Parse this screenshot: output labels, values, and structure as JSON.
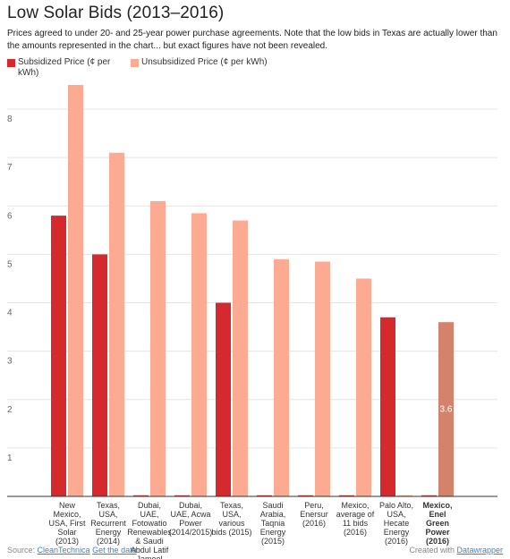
{
  "title": "Low Solar Bids (2013–2016)",
  "subtitle": "Prices agreed to under 20- and 25-year power purchase agreements. Note that the low bids in Texas are actually lower than the amounts represented in the chart... but exact figures have not been revealed.",
  "legend": [
    {
      "label": "Subsidized Price (¢ per kWh)",
      "color": "#d42a2d"
    },
    {
      "label": "Unsubsidized Price (¢ per kWh)",
      "color": "#fcaa92"
    }
  ],
  "chart_data": {
    "type": "bar",
    "title": "Low Solar Bids (2013–2016)",
    "ylim": [
      0,
      8.5
    ],
    "y_ticks": [
      1,
      2,
      3,
      4,
      5,
      6,
      7,
      8
    ],
    "grid": true,
    "legend_position": "top-left",
    "categories": [
      [
        "New",
        "Mexico,",
        "USA, First",
        "Solar",
        "(2013)"
      ],
      [
        "Texas,",
        "USA,",
        "Recurrent",
        "Energy",
        "(2014)"
      ],
      [
        "Dubai,",
        "UAE,",
        "Fotowatio",
        "Renewables",
        "& Saudi",
        "Abdul Latif",
        "Jameel"
      ],
      [
        "Dubai,",
        "UAE, Acwa",
        "Power",
        "(2014/2015)"
      ],
      [
        "Texas,",
        "USA,",
        "various",
        "bids (2015)"
      ],
      [
        "Saudi",
        "Arabia,",
        "Taqnia",
        "Energy",
        "(2015)"
      ],
      [
        "Peru,",
        "Enersur",
        "(2016)"
      ],
      [
        "Mexico,",
        "average of",
        "11 bids",
        "(2016)"
      ],
      [
        "Palo Alto,",
        "USA,",
        "Hecate",
        "Energy",
        "(2016)"
      ],
      [
        "Mexico,",
        "Enel",
        "Green",
        "Power",
        "(2016)"
      ]
    ],
    "series": [
      {
        "name": "Subsidized Price (¢ per kWh)",
        "color": "#d42a2d",
        "values": [
          5.8,
          5.0,
          0,
          0,
          4.0,
          0,
          0,
          0,
          3.7,
          0
        ]
      },
      {
        "name": "Unsubsidized Price (¢ per kWh)",
        "color": "#fcaa92",
        "values": [
          8.5,
          7.1,
          6.1,
          5.85,
          5.7,
          4.9,
          4.85,
          4.5,
          0,
          3.6
        ]
      }
    ],
    "highlight": {
      "index": 9,
      "series": 1,
      "color": "#d5826b",
      "label": "3.6"
    }
  },
  "footer": {
    "source_prefix": "Source: ",
    "source_link": "CleanTechnica",
    "data_link": "Get the data",
    "credit_prefix": "Created with ",
    "credit_link": "Datawrapper"
  }
}
